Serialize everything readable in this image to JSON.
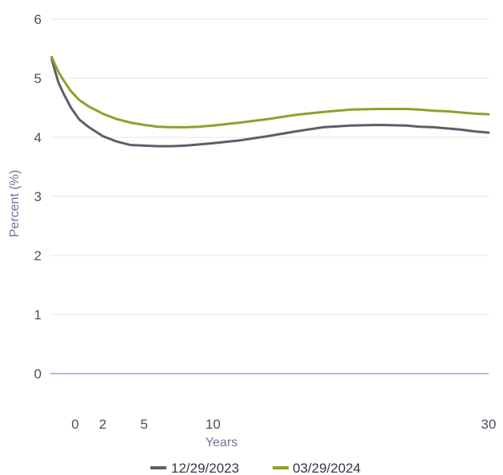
{
  "chart_data": {
    "type": "line",
    "xlabel": "Years",
    "ylabel": "Percent (%)",
    "xlim": [
      -1.8,
      30
    ],
    "ylim": [
      0,
      6
    ],
    "x_ticks": [
      0,
      2,
      5,
      10,
      30
    ],
    "y_ticks": [
      0,
      1,
      2,
      3,
      4,
      5,
      6
    ],
    "grid": "horizontal",
    "legend_position": "bottom-center",
    "series": [
      {
        "name": "12/29/2023",
        "color": "#5a5f6b",
        "x": [
          -1.7,
          -1.5,
          -1.2,
          -0.8,
          -0.3,
          0.3,
          1,
          2,
          3,
          4,
          5,
          6,
          7,
          8,
          9,
          10,
          12,
          14,
          16,
          18,
          20,
          22,
          24,
          25,
          26,
          27,
          28,
          29,
          30
        ],
        "y": [
          5.32,
          5.15,
          4.92,
          4.72,
          4.5,
          4.3,
          4.17,
          4.02,
          3.93,
          3.87,
          3.86,
          3.85,
          3.85,
          3.86,
          3.88,
          3.9,
          3.95,
          4.02,
          4.1,
          4.17,
          4.2,
          4.21,
          4.2,
          4.18,
          4.17,
          4.15,
          4.13,
          4.1,
          4.08
        ]
      },
      {
        "name": "03/29/2024",
        "color": "#8ea12b",
        "x": [
          -1.7,
          -1.5,
          -1.2,
          -0.8,
          -0.3,
          0.3,
          1,
          2,
          3,
          4,
          5,
          6,
          7,
          8,
          9,
          10,
          12,
          14,
          16,
          18,
          20,
          22,
          24,
          25,
          26,
          27,
          28,
          29,
          30
        ],
        "y": [
          5.36,
          5.25,
          5.1,
          4.95,
          4.78,
          4.63,
          4.52,
          4.4,
          4.31,
          4.25,
          4.21,
          4.18,
          4.17,
          4.17,
          4.18,
          4.2,
          4.25,
          4.31,
          4.38,
          4.43,
          4.47,
          4.48,
          4.48,
          4.47,
          4.45,
          4.44,
          4.42,
          4.4,
          4.39
        ]
      }
    ]
  }
}
